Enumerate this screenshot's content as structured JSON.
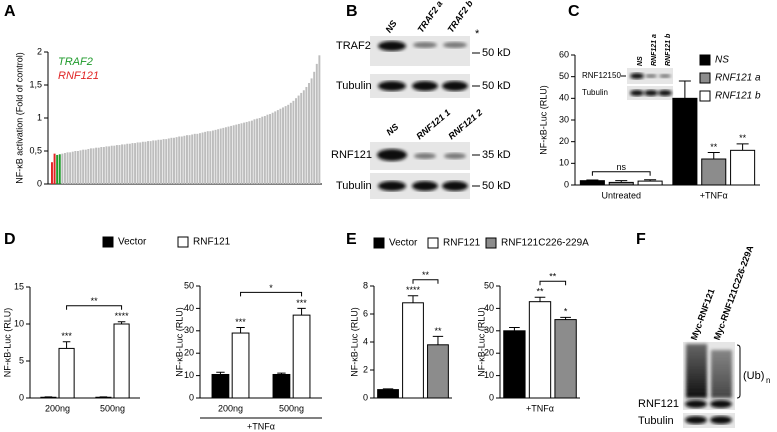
{
  "figure": {
    "panel_labels": [
      "A",
      "B",
      "C",
      "D",
      "E",
      "F"
    ],
    "blot_b_top": {
      "lanes": [
        "NS",
        "TRAF2 a",
        "TRAF2 b"
      ],
      "rows": [
        "TRAF2",
        "Tubulin"
      ],
      "markers": [
        "50 kD",
        "50 kD"
      ],
      "asterisk": "*"
    },
    "blot_b_bottom": {
      "lanes": [
        "NS",
        "RNF121 1",
        "RNF121 2"
      ],
      "rows": [
        "RNF121",
        "Tubulin"
      ],
      "markers": [
        "35 kD",
        "50 kD"
      ]
    },
    "blot_c_inset": {
      "lanes": [
        "NS",
        "RNF121 a",
        "RNF121 b"
      ],
      "rows": [
        "RNF121",
        "Tubulin"
      ],
      "marker": "50"
    },
    "blot_f": {
      "lanes": [
        "Myc-RNF121",
        "Myc-RNF121C226-229A"
      ],
      "rows": [
        "RNF121",
        "Tubulin"
      ],
      "smear": "(Ub)",
      "smear_sub": "n"
    }
  },
  "chart_data": [
    {
      "type": "bar",
      "ylabel": "NF-κB activation (Fold of control)",
      "series": [
        {
          "name": "RNF121",
          "color": "#e02424",
          "values": [
            0.33,
            0.46
          ]
        },
        {
          "name": "TRAF2",
          "color": "#1e9a2a",
          "values": [
            0.44,
            0.45
          ]
        }
      ],
      "values": [
        0.46,
        0.47,
        0.48,
        0.48,
        0.49,
        0.5,
        0.5,
        0.51,
        0.52,
        0.52,
        0.53,
        0.54,
        0.54,
        0.55,
        0.55,
        0.56,
        0.56,
        0.57,
        0.57,
        0.58,
        0.58,
        0.59,
        0.59,
        0.6,
        0.6,
        0.61,
        0.61,
        0.62,
        0.62,
        0.63,
        0.63,
        0.64,
        0.64,
        0.65,
        0.65,
        0.66,
        0.66,
        0.67,
        0.67,
        0.68,
        0.68,
        0.69,
        0.7,
        0.7,
        0.71,
        0.72,
        0.72,
        0.73,
        0.74,
        0.74,
        0.75,
        0.76,
        0.76,
        0.77,
        0.78,
        0.79,
        0.8,
        0.8,
        0.81,
        0.82,
        0.83,
        0.84,
        0.85,
        0.86,
        0.87,
        0.88,
        0.89,
        0.9,
        0.91,
        0.92,
        0.93,
        0.94,
        0.95,
        0.96,
        0.98,
        0.99,
        1.0,
        1.02,
        1.03,
        1.05,
        1.06,
        1.08,
        1.1,
        1.12,
        1.14,
        1.16,
        1.18,
        1.2,
        1.23,
        1.26,
        1.3,
        1.34,
        1.38,
        1.42,
        1.47,
        1.53,
        1.6,
        1.7,
        1.82,
        1.95
      ],
      "color": "#bdbdbd",
      "ylim": [
        0,
        2
      ],
      "yticks": [
        0,
        {
          "value": 0.5,
          "label": "0,5"
        },
        1,
        {
          "value": 1.5,
          "label": "1,5"
        },
        2
      ],
      "legend": true
    },
    {
      "type": "bar",
      "ylabel": "NF-κB-Luc (RLU)",
      "categories": [
        "Untreated",
        "+TNFα"
      ],
      "series": [
        {
          "name": "NS",
          "color": "#000000",
          "values": [
            2,
            40
          ],
          "errors": [
            0.3,
            8
          ]
        },
        {
          "name": "RNF121 a",
          "color": "#8c8c8c",
          "values": [
            1.2,
            12
          ],
          "errors": [
            0.8,
            3
          ]
        },
        {
          "name": "RNF121 b",
          "color": "#ffffff",
          "values": [
            1.8,
            16
          ],
          "errors": [
            0.6,
            3
          ]
        }
      ],
      "ylim": [
        0,
        60
      ],
      "yticks": [
        0,
        10,
        20,
        30,
        40,
        50,
        60
      ],
      "legend": true,
      "annotations": [
        "ns",
        "**",
        "**"
      ]
    },
    {
      "type": "bar",
      "ylabel": "NF-κB-Luc (RLU)",
      "categories": [
        "200ng",
        "500ng"
      ],
      "series": [
        {
          "name": "Vector",
          "color": "#000000",
          "values": [
            0.1,
            0.1
          ],
          "errors": [
            0.05,
            0.05
          ]
        },
        {
          "name": "RNF121",
          "color": "#ffffff",
          "values": [
            6.7,
            10
          ],
          "errors": [
            0.9,
            0.3
          ]
        }
      ],
      "ylim": [
        0,
        15
      ],
      "yticks": [
        0,
        5,
        10,
        15
      ],
      "legend": true,
      "annotations": [
        "***",
        "****",
        "**"
      ]
    },
    {
      "type": "bar",
      "ylabel": "NF-κB-Luc (RLU)",
      "categories": [
        "200ng",
        "500ng"
      ],
      "xlabel": "+TNFα",
      "series": [
        {
          "name": "Vector",
          "color": "#000000",
          "values": [
            10.5,
            10.5
          ],
          "errors": [
            1,
            0.6
          ]
        },
        {
          "name": "RNF121",
          "color": "#ffffff",
          "values": [
            29,
            37
          ],
          "errors": [
            2.5,
            3
          ]
        }
      ],
      "ylim": [
        0,
        50
      ],
      "yticks": [
        0,
        10,
        20,
        30,
        40,
        50
      ],
      "legend": false,
      "annotations": [
        "***",
        "***",
        "*"
      ]
    },
    {
      "type": "bar",
      "ylabel": "NF-κB-Luc (RLU)",
      "categories": [
        null
      ],
      "series": [
        {
          "name": "Vector",
          "color": "#000000",
          "values": [
            0.6
          ],
          "errors": [
            0.05
          ]
        },
        {
          "name": "RNF121",
          "color": "#ffffff",
          "values": [
            6.8
          ],
          "errors": [
            0.5
          ]
        },
        {
          "name": "RNF121C226-229A",
          "color": "#8c8c8c",
          "values": [
            3.8
          ],
          "errors": [
            0.6
          ]
        }
      ],
      "ylim": [
        0,
        8
      ],
      "yticks": [
        0,
        2,
        4,
        6,
        8
      ],
      "legend": true,
      "annotations": [
        "****",
        "**",
        "**"
      ]
    },
    {
      "type": "bar",
      "ylabel": "NF-κB-Luc (RLU)",
      "categories": [
        "+TNFα"
      ],
      "series": [
        {
          "name": "Vector",
          "color": "#000000",
          "values": [
            30
          ],
          "errors": [
            1.5
          ]
        },
        {
          "name": "RNF121",
          "color": "#ffffff",
          "values": [
            43
          ],
          "errors": [
            2
          ]
        },
        {
          "name": "RNF121C226-229A",
          "color": "#8c8c8c",
          "values": [
            35
          ],
          "errors": [
            1
          ]
        }
      ],
      "ylim": [
        0,
        50
      ],
      "yticks": [
        0,
        10,
        20,
        30,
        40,
        50
      ],
      "legend": false,
      "annotations": [
        "**",
        "*",
        "**"
      ]
    }
  ]
}
